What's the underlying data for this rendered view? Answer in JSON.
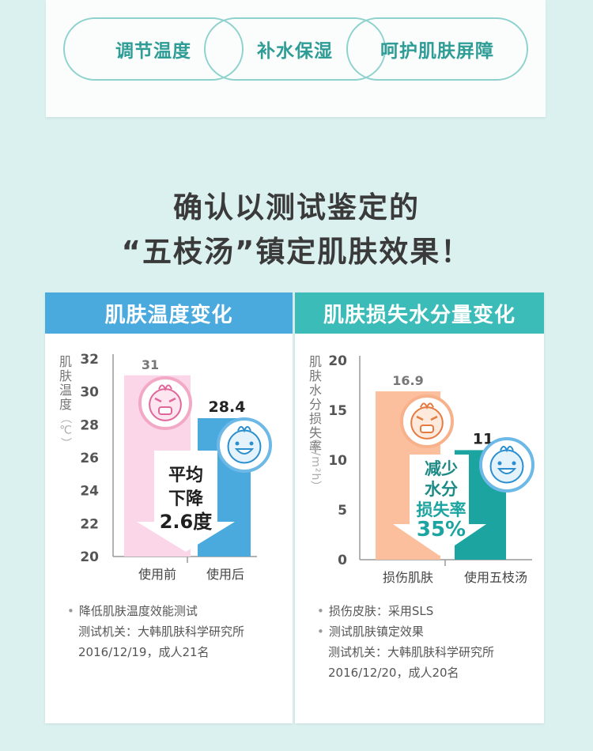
{
  "pills": [
    "调节温度",
    "补水保湿",
    "呵护肌肤屏障"
  ],
  "headline": {
    "line1": "确认以测试鉴定的",
    "line2": "“五枝汤”镇定肌肤效果！"
  },
  "chart_data": [
    {
      "type": "bar",
      "title": "肌肤温度变化",
      "ylabel": "肌肤温度（℃）",
      "ylabel_chars": [
        "肌",
        "肤",
        "温",
        "度"
      ],
      "yunit": "（℃）",
      "yticks": [
        32,
        30,
        28,
        26,
        24,
        22,
        20
      ],
      "ylim": [
        20,
        32
      ],
      "categories": [
        "使用前",
        "使用后"
      ],
      "values": [
        31,
        28.4
      ],
      "value_labels": [
        "31",
        "28.4"
      ],
      "colors": [
        "#fbd6e8",
        "#4aa9dd"
      ],
      "annotation": [
        "平均",
        "下降",
        "2.6度"
      ]
    },
    {
      "type": "bar",
      "title": "肌肤损失水分量变化",
      "ylabel": "肌肤水分损失率（g/m²h）",
      "ylabel_chars": [
        "肌",
        "肤",
        "水",
        "分",
        "损",
        "失",
        "率"
      ],
      "yunit": "（g/m²h）",
      "yticks": [
        20,
        15,
        10,
        5,
        0
      ],
      "ylim": [
        0,
        20
      ],
      "categories": [
        "损伤肌肤",
        "使用五枝汤"
      ],
      "values": [
        16.9,
        11
      ],
      "value_labels": [
        "16.9",
        "11"
      ],
      "colors": [
        "#fbbf9e",
        "#1ba4a0"
      ],
      "annotation": [
        "减少",
        "水分",
        "损失率",
        "35%"
      ]
    }
  ],
  "notes": [
    {
      "lines": [
        "降低肌肤温度效能测试",
        "测试机关：大韩肌肤科学研究所",
        "2016/12/19，成人21名"
      ]
    },
    {
      "lines": [
        "损伤皮肤：采用SLS",
        "测试肌肤镇定效果",
        "测试机关：大韩肌肤科学研究所",
        "2016/12/20，成人20名"
      ]
    }
  ]
}
